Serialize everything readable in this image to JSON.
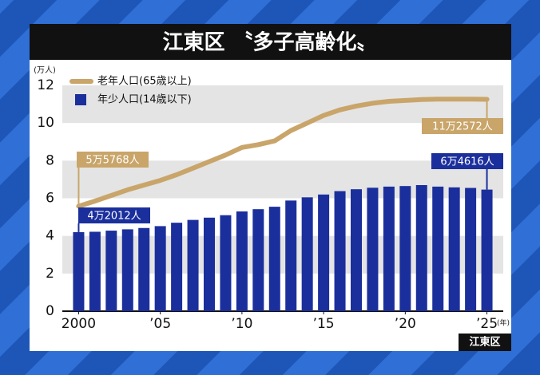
{
  "chart_data": {
    "type": "bar-line",
    "title": "江東区 〝多子高齢化〟",
    "y_unit": "(万人)",
    "x_unit": "(年)",
    "source": "江東区",
    "x": [
      2000,
      2001,
      2002,
      2003,
      2004,
      2005,
      2006,
      2007,
      2008,
      2009,
      2010,
      2011,
      2012,
      2013,
      2014,
      2015,
      2016,
      2017,
      2018,
      2019,
      2020,
      2021,
      2022,
      2023,
      2024,
      2025
    ],
    "xlim": [
      1999,
      2026
    ],
    "xticks": [
      2000,
      {
        "value": 2005,
        "label": "’05"
      },
      {
        "value": 2010,
        "label": "’10"
      },
      {
        "value": 2015,
        "label": "’15"
      },
      {
        "value": 2020,
        "label": "’20"
      },
      {
        "value": 2025,
        "label": "’25"
      }
    ],
    "ylim": [
      0,
      12
    ],
    "yticks": [
      0,
      2,
      4,
      6,
      8,
      10,
      12
    ],
    "grid": "bands",
    "legend": "top-left",
    "series": [
      {
        "name": "老年人口(65歳以上)",
        "type": "line",
        "color": "#c9a56a",
        "values": [
          5.5768,
          5.85,
          6.15,
          6.45,
          6.7,
          6.95,
          7.25,
          7.6,
          7.95,
          8.3,
          8.7,
          8.85,
          9.05,
          9.6,
          10.0,
          10.4,
          10.7,
          10.9,
          11.05,
          11.15,
          11.2,
          11.25,
          11.27,
          11.27,
          11.27,
          11.2572
        ],
        "annotations": [
          {
            "index": 0,
            "label": "5万5768人"
          },
          {
            "index": 25,
            "label": "11万2572人"
          }
        ]
      },
      {
        "name": "年少人口(14歳以下)",
        "type": "bar",
        "color": "#1b2f9c",
        "values": [
          4.2012,
          4.22,
          4.28,
          4.35,
          4.42,
          4.52,
          4.7,
          4.85,
          4.97,
          5.1,
          5.3,
          5.42,
          5.55,
          5.88,
          6.05,
          6.2,
          6.38,
          6.48,
          6.56,
          6.62,
          6.65,
          6.7,
          6.62,
          6.58,
          6.55,
          6.4616
        ],
        "annotations": [
          {
            "index": 0,
            "label": "4万2012人"
          },
          {
            "index": 25,
            "label": "6万4616人"
          }
        ]
      }
    ]
  }
}
